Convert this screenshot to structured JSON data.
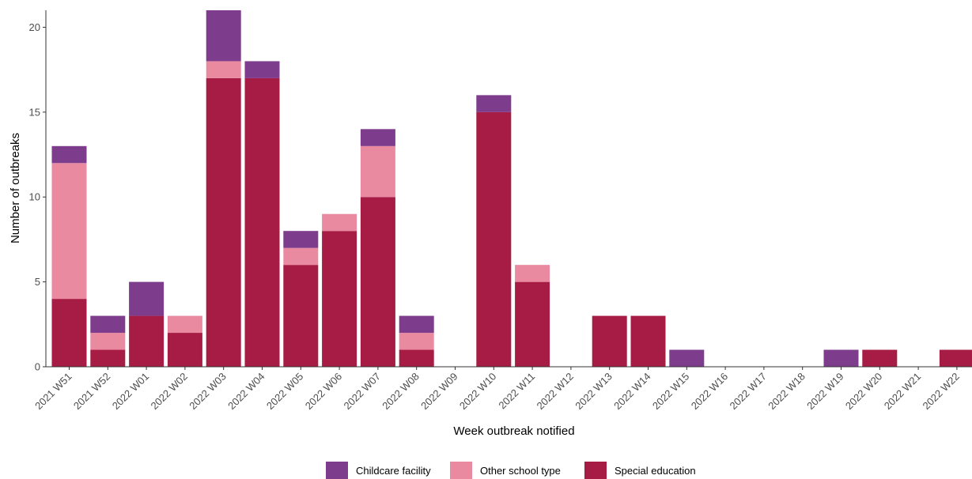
{
  "chart_data": {
    "type": "bar",
    "stacked": true,
    "title": "",
    "xlabel": "Week outbreak notified",
    "ylabel": "Number of outbreaks",
    "ylim": [
      0,
      21
    ],
    "yticks": [
      0,
      5,
      10,
      15,
      20
    ],
    "grid": false,
    "legend_position": "bottom",
    "categories": [
      "2021 W51",
      "2021 W52",
      "2022 W01",
      "2022 W02",
      "2022 W03",
      "2022 W04",
      "2022 W05",
      "2022 W06",
      "2022 W07",
      "2022 W08",
      "2022 W09",
      "2022 W10",
      "2022 W11",
      "2022 W12",
      "2022 W13",
      "2022 W14",
      "2022 W15",
      "2022 W16",
      "2022 W17",
      "2022 W18",
      "2022 W19",
      "2022 W20",
      "2022 W21",
      "2022 W22"
    ],
    "series": [
      {
        "name": "Special education",
        "color": "#a71c45",
        "values": [
          4,
          1,
          3,
          2,
          17,
          17,
          6,
          8,
          10,
          1,
          0,
          15,
          5,
          0,
          3,
          3,
          0,
          0,
          0,
          0,
          0,
          1,
          0,
          1
        ]
      },
      {
        "name": "Other school type",
        "color": "#e98aa1",
        "values": [
          8,
          1,
          0,
          1,
          1,
          0,
          1,
          1,
          3,
          1,
          0,
          0,
          1,
          0,
          0,
          0,
          0,
          0,
          0,
          0,
          0,
          0,
          0,
          0
        ]
      },
      {
        "name": "Childcare facility",
        "color": "#7d3c8c",
        "values": [
          1,
          1,
          2,
          0,
          3,
          1,
          1,
          0,
          1,
          1,
          0,
          1,
          0,
          0,
          0,
          0,
          1,
          0,
          0,
          0,
          1,
          0,
          0,
          0
        ]
      }
    ],
    "legend_order": [
      "Childcare facility",
      "Other school type",
      "Special education"
    ]
  }
}
